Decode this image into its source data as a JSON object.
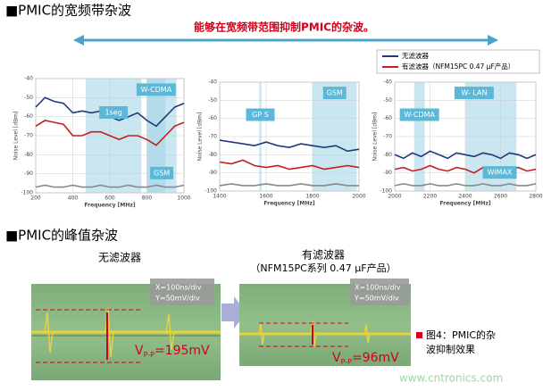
{
  "section1": {
    "title": "■PMIC的宽频带杂波",
    "banner": "能够在宽频带范围抑制PMIC的杂波。"
  },
  "legend": [
    {
      "name": "无滤波器",
      "color": "#1f3a78"
    },
    {
      "name": "有滤波器（NFM15PC 0.47 μF产品）",
      "color": "#c41e1e"
    }
  ],
  "chart_data": [
    {
      "type": "line",
      "xlabel": "Frequency [MHz]",
      "ylabel": "Noise Level [dBm]",
      "xlim": [
        200,
        1000
      ],
      "xticks": [
        200,
        400,
        600,
        800,
        1000
      ],
      "ylim": [
        -100,
        -40
      ],
      "yticks": [
        -40,
        -50,
        -60,
        -70,
        -80,
        -90,
        -100
      ],
      "bands": [
        {
          "label": "1seg",
          "range": [
            470,
            770
          ]
        },
        {
          "label": "W-CDMA",
          "range": [
            800,
            900
          ]
        },
        {
          "label": "GSM",
          "range": [
            800,
            960
          ]
        }
      ],
      "x": [
        200,
        250,
        300,
        350,
        400,
        450,
        500,
        550,
        600,
        650,
        700,
        750,
        800,
        850,
        900,
        950,
        1000
      ],
      "series": [
        {
          "color": "#1f3a78",
          "values": [
            -55,
            -50,
            -52,
            -53,
            -58,
            -57,
            -58,
            -57,
            -60,
            -62,
            -60,
            -58,
            -62,
            -65,
            -60,
            -55,
            -53
          ]
        },
        {
          "color": "#c41e1e",
          "values": [
            -65,
            -62,
            -63,
            -64,
            -70,
            -70,
            -68,
            -68,
            -70,
            -72,
            -70,
            -70,
            -72,
            -75,
            -70,
            -65,
            -63
          ]
        },
        {
          "color": "#888888",
          "values": [
            -97,
            -96,
            -97,
            -97,
            -96,
            -97,
            -97,
            -96,
            -97,
            -97,
            -96,
            -97,
            -97,
            -96,
            -97,
            -97,
            -96
          ]
        }
      ]
    },
    {
      "type": "line",
      "xlabel": "Frequency [MHz]",
      "ylabel": "Noise Level [dBm]",
      "xlim": [
        1400,
        2000
      ],
      "xticks": [
        1400,
        1600,
        1800,
        2000
      ],
      "ylim": [
        -100,
        -40
      ],
      "yticks": [
        -40,
        -50,
        -60,
        -70,
        -80,
        -90,
        -100
      ],
      "bands": [
        {
          "label": "GP S",
          "range": [
            1570,
            1580
          ]
        },
        {
          "label": "GSM",
          "range": [
            1800,
            1990
          ]
        }
      ],
      "x": [
        1400,
        1450,
        1500,
        1550,
        1600,
        1650,
        1700,
        1750,
        1800,
        1850,
        1900,
        1950,
        2000
      ],
      "series": [
        {
          "color": "#1f3a78",
          "values": [
            -72,
            -73,
            -74,
            -75,
            -73,
            -75,
            -76,
            -74,
            -75,
            -76,
            -75,
            -78,
            -77
          ]
        },
        {
          "color": "#c41e1e",
          "values": [
            -84,
            -85,
            -83,
            -86,
            -87,
            -86,
            -88,
            -87,
            -86,
            -88,
            -87,
            -86,
            -87
          ]
        },
        {
          "color": "#888888",
          "values": [
            -97,
            -96,
            -97,
            -97,
            -96,
            -97,
            -97,
            -96,
            -97,
            -97,
            -96,
            -97,
            -97
          ]
        }
      ]
    },
    {
      "type": "line",
      "xlabel": "Frequency [MHz]",
      "ylabel": "Noise Level [dBm]",
      "xlim": [
        2000,
        2800
      ],
      "xticks": [
        2000,
        2200,
        2400,
        2600,
        2800
      ],
      "ylim": [
        -100,
        -40
      ],
      "yticks": [
        -40,
        -50,
        -60,
        -70,
        -80,
        -90,
        -100
      ],
      "bands": [
        {
          "label": "W-CDMA",
          "range": [
            2110,
            2170
          ]
        },
        {
          "label": "W- LAN",
          "range": [
            2400,
            2500
          ]
        },
        {
          "label": "WiMAX",
          "range": [
            2500,
            2690
          ]
        }
      ],
      "x": [
        2000,
        2050,
        2100,
        2150,
        2200,
        2250,
        2300,
        2350,
        2400,
        2450,
        2500,
        2550,
        2600,
        2650,
        2700,
        2750,
        2800
      ],
      "series": [
        {
          "color": "#1f3a78",
          "values": [
            -80,
            -82,
            -79,
            -81,
            -78,
            -80,
            -82,
            -79,
            -80,
            -81,
            -79,
            -80,
            -82,
            -79,
            -80,
            -82,
            -80
          ]
        },
        {
          "color": "#c41e1e",
          "values": [
            -88,
            -87,
            -89,
            -88,
            -86,
            -88,
            -89,
            -87,
            -88,
            -90,
            -87,
            -88,
            -89,
            -88,
            -87,
            -89,
            -88
          ]
        },
        {
          "color": "#888888",
          "values": [
            -97,
            -96,
            -97,
            -97,
            -96,
            -97,
            -97,
            -96,
            -97,
            -97,
            -96,
            -97,
            -97,
            -96,
            -97,
            -97,
            -96
          ]
        }
      ]
    }
  ],
  "section2": {
    "title": "■PMIC的峰值杂波",
    "left_label": "无滤波器",
    "right_label": [
      "有滤波器",
      "（NFM15PC系列 0.47 μF产品）"
    ],
    "scope_settings": [
      "X=100ns/div",
      "Y=50mV/div"
    ],
    "vpp_symbol": "V",
    "vpp_sub": "P-P",
    "left_vpp": "=195mV",
    "right_vpp": "=96mV",
    "caption": [
      "图4：PMIC的杂",
      "波抑制效果"
    ],
    "watermark": "www.cntronics.com"
  }
}
